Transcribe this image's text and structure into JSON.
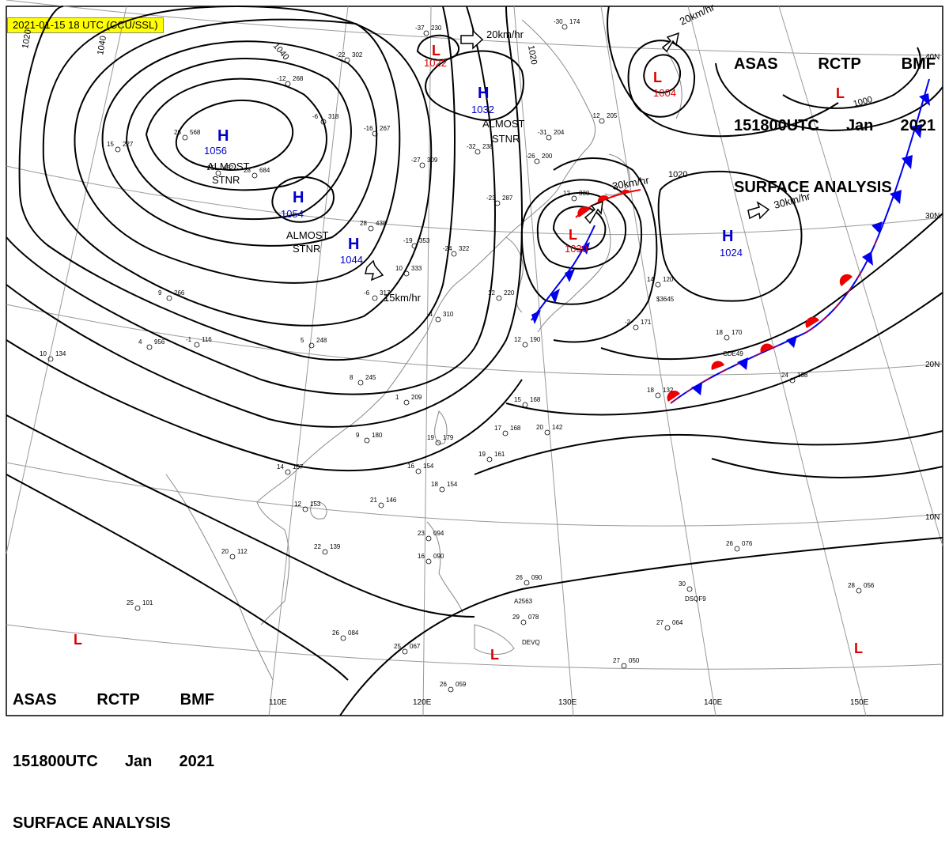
{
  "timestamp_badge": "2021-01-15 18 UTC (CCU/SSL)",
  "header": {
    "line1": [
      "ASAS",
      "RCTP",
      "BMF"
    ],
    "line2": [
      "151800UTC",
      "Jan",
      "2021"
    ],
    "line3": "SURFACE ANALYSIS"
  },
  "lat_labels": [
    "40N",
    "30N",
    "20N",
    "10N"
  ],
  "lon_labels": [
    "110E",
    "120E",
    "130E",
    "140E",
    "150E"
  ],
  "isobar_labels": [
    "1020",
    "1040",
    "1040",
    "1020",
    "1020",
    "1000"
  ],
  "pressure_systems": [
    {
      "type": "H",
      "value": "1056"
    },
    {
      "type": "H",
      "value": "1054"
    },
    {
      "type": "H",
      "value": "1044"
    },
    {
      "type": "H",
      "value": "1032"
    },
    {
      "type": "H",
      "value": "1024"
    },
    {
      "type": "L",
      "value": "1022"
    },
    {
      "type": "L",
      "value": "1004"
    },
    {
      "type": "L",
      "value": "1030"
    },
    {
      "type": "L",
      "value": ""
    },
    {
      "type": "L",
      "value": ""
    },
    {
      "type": "L",
      "value": ""
    },
    {
      "type": "L",
      "value": ""
    }
  ],
  "notes": [
    {
      "line1": "ALMOST",
      "line2": "STNR"
    },
    {
      "line1": "ALMOST",
      "line2": "STNR"
    },
    {
      "line1": "ALMOST",
      "line2": "STNR"
    }
  ],
  "motion_labels": [
    "20km/hr",
    "20km/hr",
    "30km/hr",
    "30km/hr",
    "15km/hr"
  ],
  "colors": {
    "high": "#0000cc",
    "low": "#dd0000",
    "cold_front": "#0000ee",
    "warm_front": "#ee0000",
    "isobar": "#000000",
    "coast": "#888888",
    "grid": "#999999",
    "badge": "#ffff00"
  },
  "station_obs": [
    {
      "t": "-37",
      "p": "230"
    },
    {
      "t": "-30",
      "p": "174"
    },
    {
      "t": "-22",
      "p": "302"
    },
    {
      "t": "-12",
      "p": "268"
    },
    {
      "t": "-6",
      "p": "318"
    },
    {
      "t": "26",
      "p": "568"
    },
    {
      "t": "15",
      "p": "227"
    },
    {
      "t": "28",
      "p": "684"
    },
    {
      "t": "25",
      "p": "452"
    },
    {
      "t": "-16",
      "p": "267"
    },
    {
      "t": "-32",
      "p": "238"
    },
    {
      "t": "-31",
      "p": "204"
    },
    {
      "t": "-27",
      "p": "309"
    },
    {
      "t": "-26",
      "p": "200"
    },
    {
      "t": "-23",
      "p": "287"
    },
    {
      "t": "28",
      "p": "438"
    },
    {
      "t": "-19",
      "p": "353"
    },
    {
      "t": "-24",
      "p": "322"
    },
    {
      "t": "12",
      "p": "330"
    },
    {
      "t": "10",
      "p": "333"
    },
    {
      "t": "-6",
      "p": "317"
    },
    {
      "t": "9",
      "p": "266"
    },
    {
      "t": "-4",
      "p": "310"
    },
    {
      "t": "-1",
      "p": "116"
    },
    {
      "t": "4",
      "p": "956"
    },
    {
      "t": "10",
      "p": "134"
    },
    {
      "t": "5",
      "p": "248"
    },
    {
      "t": "8",
      "p": "245"
    },
    {
      "t": "1",
      "p": "209"
    },
    {
      "t": "14",
      "p": "157"
    },
    {
      "t": "12",
      "p": "153"
    },
    {
      "t": "9",
      "p": "180"
    },
    {
      "t": "19",
      "p": "179"
    },
    {
      "t": "16",
      "p": "154"
    },
    {
      "t": "18",
      "p": "154"
    },
    {
      "t": "19",
      "p": "161"
    },
    {
      "t": "17",
      "p": "168"
    },
    {
      "t": "20",
      "p": "142"
    },
    {
      "t": "15",
      "p": "168"
    },
    {
      "t": "21",
      "p": "146"
    },
    {
      "t": "22",
      "p": "139"
    },
    {
      "t": "20",
      "p": "112"
    },
    {
      "t": "23",
      "p": "094"
    },
    {
      "t": "16",
      "p": "090"
    },
    {
      "t": "26",
      "p": "090"
    },
    {
      "t": "29",
      "p": "078"
    },
    {
      "t": "26",
      "p": "084"
    },
    {
      "t": "25",
      "p": "067"
    },
    {
      "t": "26",
      "p": "059"
    },
    {
      "t": "27",
      "p": "050"
    },
    {
      "t": "27",
      "p": "064"
    },
    {
      "t": "26",
      "p": "076"
    },
    {
      "t": "28",
      "p": "056"
    },
    {
      "t": "30",
      "p": ""
    },
    {
      "t": "14",
      "p": "120"
    },
    {
      "t": "18",
      "p": "170"
    },
    {
      "t": "18",
      "p": "132"
    },
    {
      "t": "24",
      "p": "138"
    },
    {
      "t": "25",
      "p": "101"
    },
    {
      "t": "12",
      "p": "190"
    },
    {
      "t": "12",
      "p": "220"
    },
    {
      "t": "-12",
      "p": "205"
    },
    {
      "t": "-2",
      "p": "171"
    }
  ],
  "station_codes": [
    "A2563",
    "CDE49",
    "DEVQ",
    "DSQF9",
    "$3645"
  ]
}
